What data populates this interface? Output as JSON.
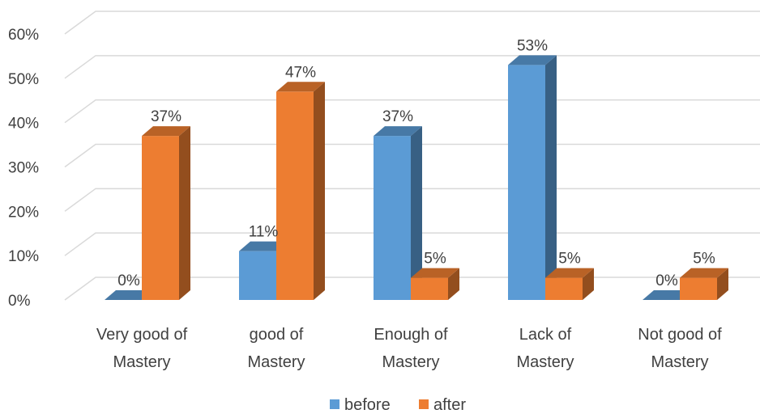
{
  "chart_data": {
    "type": "bar",
    "style": "3d-clustered-column",
    "categories": [
      [
        "Very good of",
        "Mastery"
      ],
      [
        "good of",
        "Mastery"
      ],
      [
        "Enough of",
        "Mastery"
      ],
      [
        "Lack of",
        "Mastery"
      ],
      [
        "Not good of",
        "Mastery"
      ]
    ],
    "series": [
      {
        "name": "before",
        "color": "#5b9bd5",
        "values": [
          0,
          11,
          37,
          53,
          0
        ],
        "labels": [
          "0%",
          "11%",
          "37%",
          "53%",
          "0%"
        ]
      },
      {
        "name": "after",
        "color": "#ed7d31",
        "values": [
          37,
          47,
          5,
          5,
          5
        ],
        "labels": [
          "37%",
          "47%",
          "5%",
          "5%",
          "5%"
        ]
      }
    ],
    "yticks": [
      "0%",
      "10%",
      "20%",
      "30%",
      "40%",
      "50%",
      "60%"
    ],
    "ylim": [
      0,
      60
    ],
    "grid": true,
    "legend": "bottom-center"
  }
}
